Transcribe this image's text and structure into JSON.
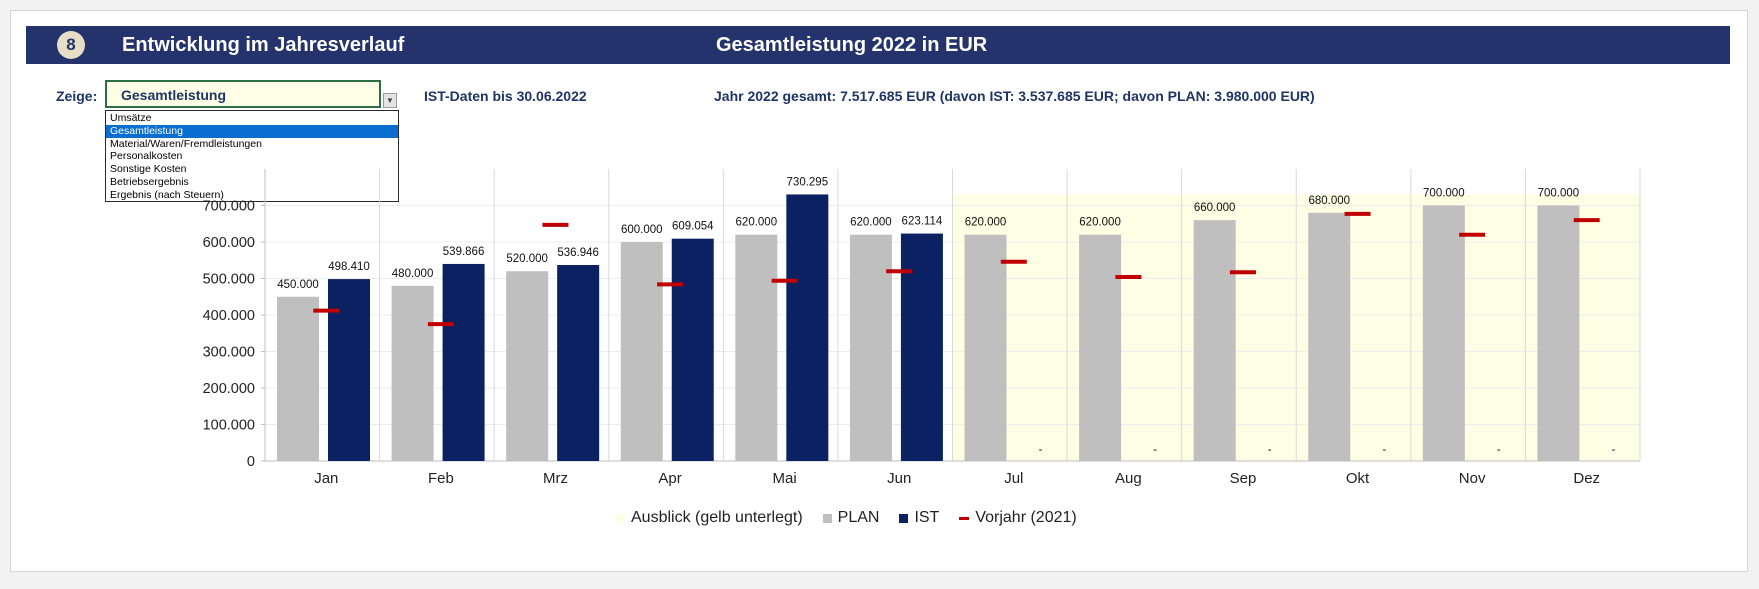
{
  "header": {
    "badge": "8",
    "title": "Entwicklung im Jahresverlauf",
    "chart_title": "Gesamtleistung 2022 in EUR"
  },
  "selector": {
    "label": "Zeige:",
    "value": "Gesamtleistung",
    "options": [
      "Umsätze",
      "Gesamtleistung",
      "Material/Waren/Fremdleistungen",
      "Personalkosten",
      "Sonstige Kosten",
      "Betriebsergebnis",
      "Ergebnis (nach Steuern)"
    ],
    "selected_index": 1
  },
  "ist_info": "IST-Daten bis 30.06.2022",
  "total_info": "Jahr 2022 gesamt: 7.517.685 EUR (davon IST: 3.537.685 EUR; davon PLAN: 3.980.000 EUR)",
  "colors": {
    "header_bg": "#24336b",
    "plan": "#bfbfbf",
    "ist": "#0b2161",
    "vorjahr": "#c00000",
    "outlook": "#fefee4"
  },
  "chart_data": {
    "type": "bar",
    "categories": [
      "Jan",
      "Feb",
      "Mrz",
      "Apr",
      "Mai",
      "Jun",
      "Jul",
      "Aug",
      "Sep",
      "Okt",
      "Nov",
      "Dez"
    ],
    "series": [
      {
        "name": "PLAN",
        "values": [
          450000,
          480000,
          520000,
          600000,
          620000,
          620000,
          620000,
          620000,
          660000,
          680000,
          700000,
          700000
        ],
        "labels": [
          "450.000",
          "480.000",
          "520.000",
          "600.000",
          "620.000",
          "620.000",
          "620.000",
          "620.000",
          "660.000",
          "680.000",
          "700.000",
          "700.000"
        ]
      },
      {
        "name": "IST",
        "values": [
          498410,
          539866,
          536946,
          609054,
          730295,
          623114,
          null,
          null,
          null,
          null,
          null,
          null
        ],
        "labels": [
          "498.410",
          "539.866",
          "536.946",
          "609.054",
          "730.295",
          "623.114",
          "-",
          "-",
          "-",
          "-",
          "-",
          "-"
        ]
      },
      {
        "name": "Vorjahr (2021)",
        "values": [
          412000,
          375000,
          647000,
          484000,
          494000,
          520000,
          546000,
          504000,
          517000,
          677000,
          620000,
          660000
        ]
      }
    ],
    "outlook_months": [
      "Jul",
      "Aug",
      "Sep",
      "Okt",
      "Nov",
      "Dez"
    ],
    "ylim": [
      0,
      800000
    ],
    "yticks": [
      0,
      100000,
      200000,
      300000,
      400000,
      500000,
      600000,
      700000
    ],
    "ytick_labels": [
      "0",
      "100.000",
      "200.000",
      "300.000",
      "400.000",
      "500.000",
      "600.000",
      "700.000"
    ],
    "legend": [
      "Ausblick (gelb unterlegt)",
      "PLAN",
      "IST",
      "Vorjahr (2021)"
    ],
    "legend_position": "bottom",
    "grid": true
  }
}
